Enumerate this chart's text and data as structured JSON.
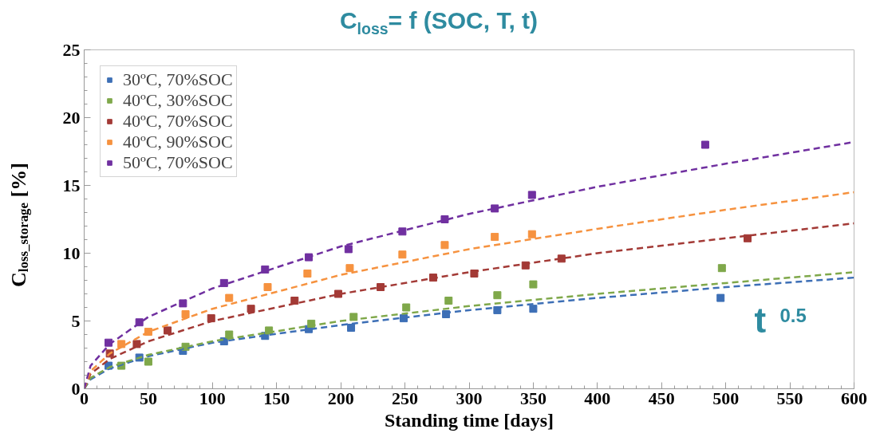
{
  "chart_data": {
    "type": "scatter",
    "title": "C$_{loss}$= f (SOC, T, t)",
    "xlabel": "Standing time [days]",
    "ylabel": "C$_{loss_storage}$ [%]",
    "annotations": [
      "t$^{0.5}$"
    ],
    "xlim": [
      0,
      600
    ],
    "xticks": [
      0,
      50,
      100,
      150,
      200,
      250,
      300,
      350,
      400,
      450,
      500,
      550,
      600
    ],
    "ylim": [
      0,
      25
    ],
    "yticks": [
      0,
      5,
      10,
      15,
      20,
      25
    ],
    "grid": false,
    "legend": "top left",
    "series": [
      {
        "name": "30ºC, 70%SOC",
        "marker": "square",
        "color": "#3d6fb6",
        "x": [
          19,
          43,
          77,
          109,
          141,
          175,
          208,
          249,
          282,
          322,
          350,
          496
        ],
        "values": [
          1.7,
          2.3,
          2.8,
          3.5,
          3.9,
          4.4,
          4.5,
          5.2,
          5.5,
          5.8,
          5.9,
          6.7
        ]
      },
      {
        "name": "40ºC, 30%SOC",
        "marker": "square",
        "color": "#7fa84a",
        "x": [
          29,
          50,
          79,
          113,
          144,
          177,
          210,
          251,
          284,
          322,
          350,
          497
        ],
        "values": [
          1.7,
          2.0,
          3.1,
          4.0,
          4.3,
          4.8,
          5.3,
          6.0,
          6.5,
          6.9,
          7.7,
          8.9
        ]
      },
      {
        "name": "40ºC, 70%SOC",
        "marker": "square",
        "color": "#a33a36",
        "x": [
          20,
          41,
          65,
          99,
          130,
          164,
          198,
          231,
          272,
          304,
          344,
          372,
          517
        ],
        "values": [
          2.6,
          3.3,
          4.3,
          5.2,
          5.9,
          6.5,
          7.0,
          7.5,
          8.2,
          8.5,
          9.1,
          9.6,
          11.1
        ]
      },
      {
        "name": "40ºC, 90%SOC",
        "marker": "square",
        "color": "#f6923f",
        "x": [
          29,
          50,
          79,
          113,
          143,
          174,
          207,
          248,
          281,
          320,
          349
        ],
        "values": [
          3.3,
          4.2,
          5.5,
          6.7,
          7.5,
          8.5,
          8.9,
          9.9,
          10.6,
          11.2,
          11.4
        ]
      },
      {
        "name": "50ºC, 70%SOC",
        "marker": "square",
        "color": "#7030a0",
        "x": [
          19,
          43,
          77,
          109,
          141,
          175,
          206,
          248,
          281,
          320,
          349,
          484
        ],
        "values": [
          3.4,
          4.9,
          6.3,
          7.8,
          8.8,
          9.7,
          10.3,
          11.6,
          12.5,
          13.3,
          14.3,
          18.0
        ]
      },
      {
        "type": "line",
        "line_style": "dashed",
        "color": "#3d6fb6",
        "x": [
          0,
          5,
          20,
          50,
          100,
          200,
          300,
          400,
          500,
          600
        ],
        "values": [
          0,
          0.7,
          1.5,
          2.4,
          3.4,
          4.7,
          5.8,
          6.7,
          7.5,
          8.2
        ]
      },
      {
        "type": "line",
        "line_style": "dashed",
        "color": "#7fa84a",
        "x": [
          0,
          5,
          20,
          50,
          100,
          200,
          300,
          400,
          500,
          600
        ],
        "values": [
          0,
          0.8,
          1.6,
          2.5,
          3.5,
          5.0,
          6.1,
          7.0,
          7.8,
          8.6
        ]
      },
      {
        "type": "line",
        "line_style": "dashed",
        "color": "#a33a36",
        "x": [
          0,
          5,
          20,
          50,
          100,
          200,
          300,
          400,
          500,
          600
        ],
        "values": [
          0,
          1.1,
          2.2,
          3.5,
          5.0,
          7.0,
          8.6,
          10.0,
          11.1,
          12.2
        ]
      },
      {
        "type": "line",
        "line_style": "dashed",
        "color": "#f6923f",
        "x": [
          0,
          5,
          20,
          50,
          100,
          200,
          300,
          400,
          500,
          600
        ],
        "values": [
          0,
          1.3,
          2.6,
          4.2,
          5.9,
          8.4,
          10.3,
          11.8,
          13.2,
          14.5
        ]
      },
      {
        "type": "line",
        "line_style": "dashed",
        "color": "#7030a0",
        "x": [
          0,
          5,
          20,
          50,
          100,
          200,
          300,
          400,
          500,
          600
        ],
        "values": [
          0,
          1.7,
          3.3,
          5.3,
          7.4,
          10.5,
          12.9,
          14.9,
          16.6,
          18.2
        ]
      }
    ]
  }
}
